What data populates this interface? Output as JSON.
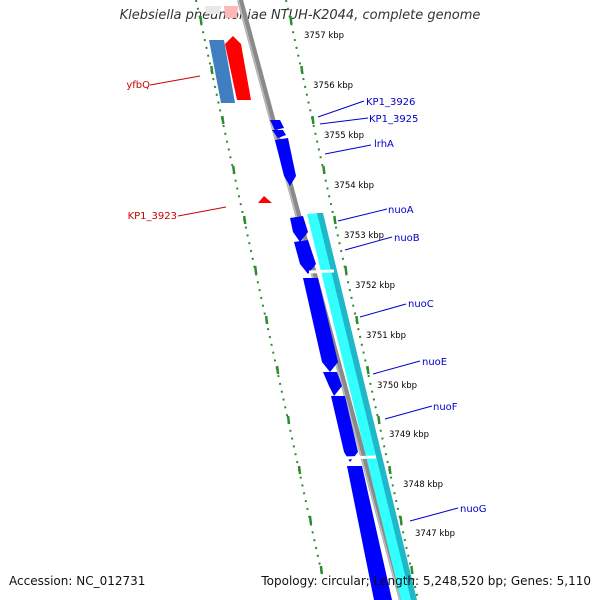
{
  "map": {
    "title": "Klebsiella pneumoniae NTUH-K2044, complete genome",
    "accession": "Accession: NC_012731",
    "topology": "Topology: circular; Length: 5,248,520 bp; Genes: 5,110",
    "colors": {
      "backbone": "#8a8a8a",
      "ruler": "#2e8b2e",
      "forward_gene": "#ff0000",
      "reverse_gene": "#0000ff",
      "forward_label": "#cc0000",
      "reverse_label": "#0000cc",
      "rna_feature_light": "#7ad6ff",
      "operon_band": "#33ffff",
      "other_feature": "#3f7fbf"
    },
    "ticks": [
      {
        "label": "3757 kbp",
        "kbp": 3757
      },
      {
        "label": "3756 kbp",
        "kbp": 3756
      },
      {
        "label": "3755 kbp",
        "kbp": 3755
      },
      {
        "label": "3754 kbp",
        "kbp": 3754
      },
      {
        "label": "3753 kbp",
        "kbp": 3753
      },
      {
        "label": "3752 kbp",
        "kbp": 3752
      },
      {
        "label": "3751 kbp",
        "kbp": 3751
      },
      {
        "label": "3750 kbp",
        "kbp": 3750
      },
      {
        "label": "3749 kbp",
        "kbp": 3749
      },
      {
        "label": "3748 kbp",
        "kbp": 3748
      },
      {
        "label": "3747 kbp",
        "kbp": 3747
      }
    ],
    "gene_labels": [
      {
        "text": "yfbQ",
        "strand": "forward"
      },
      {
        "text": "KP1_3923",
        "strand": "forward"
      },
      {
        "text": "KP1_3926",
        "strand": "reverse"
      },
      {
        "text": "KP1_3925",
        "strand": "reverse"
      },
      {
        "text": "lrhA",
        "strand": "reverse"
      },
      {
        "text": "nuoA",
        "strand": "reverse"
      },
      {
        "text": "nuoB",
        "strand": "reverse"
      },
      {
        "text": "nuoC",
        "strand": "reverse"
      },
      {
        "text": "nuoE",
        "strand": "reverse"
      },
      {
        "text": "nuoF",
        "strand": "reverse"
      },
      {
        "text": "nuoG",
        "strand": "reverse"
      }
    ]
  }
}
